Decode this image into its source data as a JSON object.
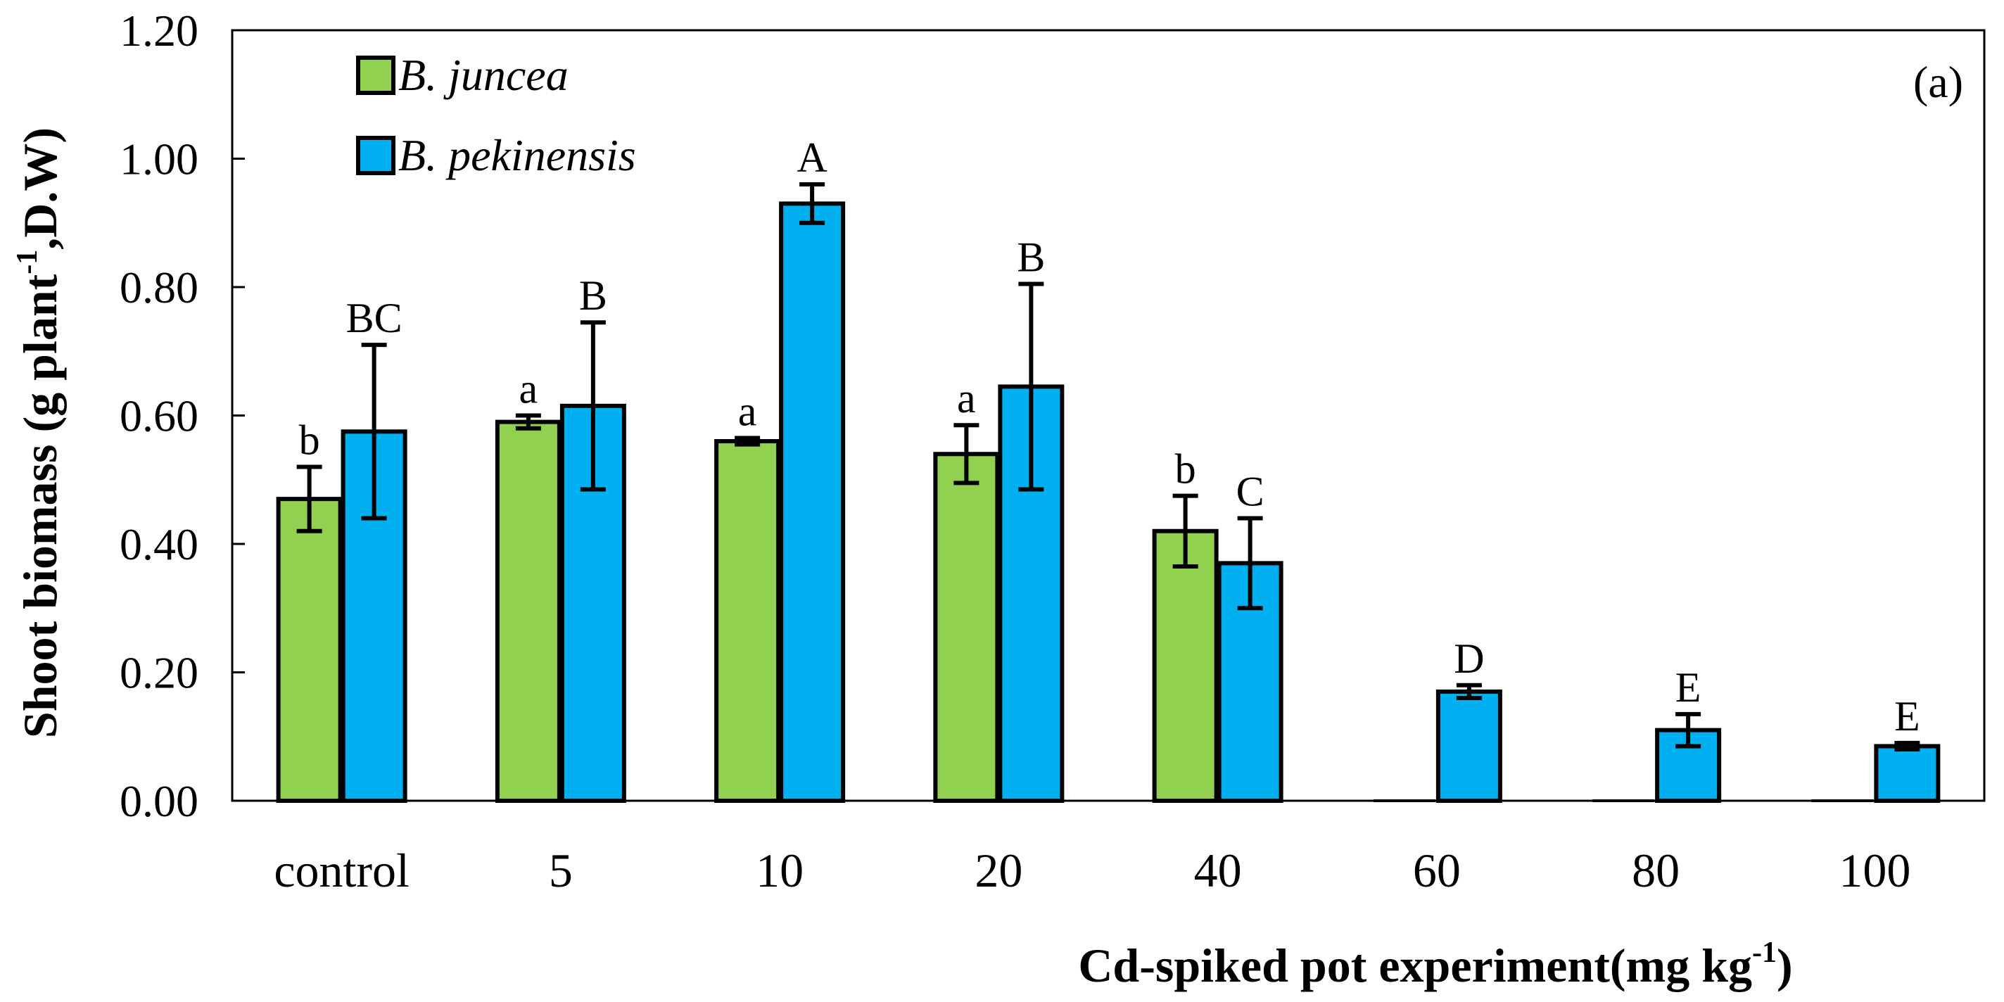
{
  "chart_data": {
    "type": "bar",
    "panel_label": "(a)",
    "xlabel": "Cd-spiked pot experiment(mg kg",
    "xlabel_sup": "-1",
    "xlabel_end": ")",
    "ylabel": "Shoot biomass (g plant",
    "ylabel_sup": "-1",
    "ylabel_end": ",D.W)",
    "ylim": [
      0,
      1.2
    ],
    "yticks": [
      "0.00",
      "0.20",
      "0.40",
      "0.60",
      "0.80",
      "1.00",
      "1.20"
    ],
    "categories": [
      "control",
      "5",
      "10",
      "20",
      "40",
      "60",
      "80",
      "100"
    ],
    "legend_position": "top-left",
    "series": [
      {
        "name": "B. juncea",
        "color": "#92d050",
        "values": [
          0.47,
          0.59,
          0.56,
          0.54,
          0.42,
          0.0,
          0.0,
          0.0
        ],
        "errors": [
          0.05,
          0.01,
          0.005,
          0.045,
          0.055,
          0,
          0,
          0
        ],
        "letters": [
          "b",
          "a",
          "a",
          "a",
          "b",
          "",
          "",
          ""
        ]
      },
      {
        "name": "B. pekinensis",
        "color": "#00b0f0",
        "values": [
          0.575,
          0.615,
          0.93,
          0.645,
          0.37,
          0.17,
          0.11,
          0.085
        ],
        "errors": [
          0.135,
          0.13,
          0.03,
          0.16,
          0.07,
          0.01,
          0.025,
          0.005
        ],
        "letters": [
          "BC",
          "B",
          "A",
          "B",
          "C",
          "D",
          "E",
          "E"
        ]
      }
    ]
  }
}
